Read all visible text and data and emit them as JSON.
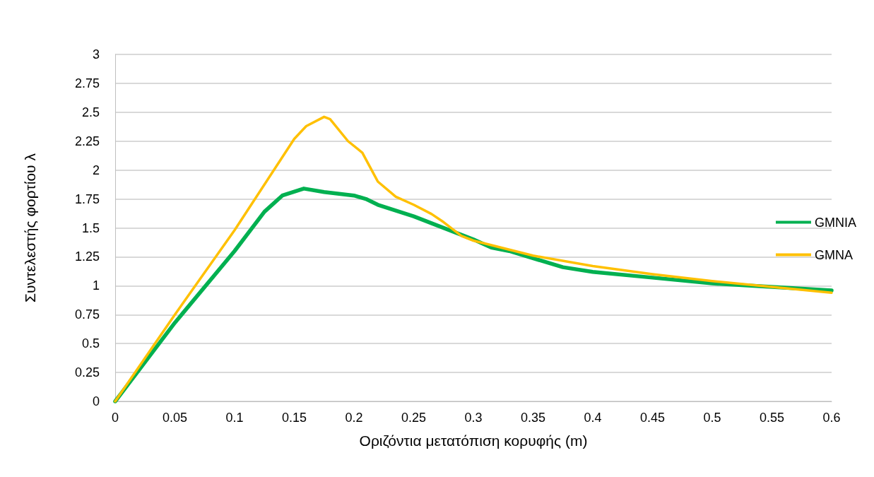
{
  "chart_data": {
    "type": "line",
    "xlabel": "Οριζόντια μετατόπιση κορυφής (m)",
    "ylabel": "Συντελεστής φορτίου λ",
    "xlim": [
      0,
      0.6
    ],
    "xticks": [
      0,
      0.05,
      0.1,
      0.15,
      0.2,
      0.25,
      0.3,
      0.35,
      0.4,
      0.45,
      0.5,
      0.55,
      0.6
    ],
    "ylim": [
      0,
      3
    ],
    "yticks": [
      0,
      0.25,
      0.5,
      0.75,
      1,
      1.25,
      1.5,
      1.75,
      2,
      2.25,
      2.5,
      2.75,
      3
    ],
    "grid": "y",
    "legend": "right",
    "marker": "none",
    "line_style": "solid",
    "series": [
      {
        "name": "GMNIA",
        "color": "#00b050",
        "x": [
          0,
          0.05,
          0.1,
          0.125,
          0.14,
          0.158,
          0.175,
          0.2,
          0.21,
          0.22,
          0.25,
          0.3,
          0.315,
          0.33,
          0.375,
          0.4,
          0.45,
          0.5,
          0.55,
          0.6
        ],
        "values": [
          0,
          0.68,
          1.3,
          1.64,
          1.78,
          1.84,
          1.81,
          1.78,
          1.75,
          1.7,
          1.6,
          1.4,
          1.33,
          1.3,
          1.16,
          1.12,
          1.07,
          1.02,
          0.99,
          0.96
        ]
      },
      {
        "name": "GMNA",
        "color": "#ffc000",
        "x": [
          0,
          0.05,
          0.1,
          0.15,
          0.16,
          0.175,
          0.18,
          0.195,
          0.207,
          0.22,
          0.235,
          0.25,
          0.265,
          0.275,
          0.29,
          0.3,
          0.35,
          0.4,
          0.45,
          0.5,
          0.55,
          0.6
        ],
        "values": [
          0,
          0.75,
          1.48,
          2.27,
          2.38,
          2.46,
          2.44,
          2.25,
          2.15,
          1.9,
          1.77,
          1.7,
          1.62,
          1.55,
          1.43,
          1.39,
          1.26,
          1.17,
          1.1,
          1.04,
          0.99,
          0.94
        ]
      }
    ]
  }
}
